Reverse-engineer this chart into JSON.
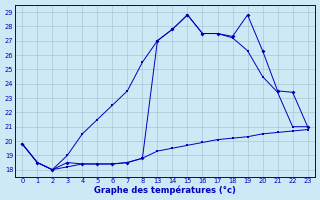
{
  "xlabel": "Graphe des températures (°c)",
  "bg_color": "#cce9f5",
  "grid_color": "#aabbcc",
  "line_color": "#0000bb",
  "xlim": [
    -0.5,
    19.5
  ],
  "ylim": [
    17.5,
    29.5
  ],
  "yticks_vals": [
    18,
    19,
    20,
    21,
    22,
    23,
    24,
    25,
    26,
    27,
    28,
    29
  ],
  "xtick_positions": [
    0,
    1,
    2,
    3,
    4,
    5,
    6,
    7,
    8,
    9,
    10,
    11,
    12,
    13,
    14,
    15,
    16,
    17,
    18,
    19
  ],
  "xtick_labels": [
    "0",
    "1",
    "2",
    "3",
    "4",
    "5",
    "6",
    "7",
    "8",
    "13",
    "14",
    "15",
    "16",
    "17",
    "18",
    "19",
    "20",
    "21",
    "22",
    "23"
  ],
  "series_min_y": [
    19.8,
    18.5,
    18.0,
    18.2,
    18.4,
    18.4,
    18.4,
    18.5,
    18.8,
    19.3,
    19.5,
    19.7,
    19.9,
    20.1,
    20.2,
    20.3,
    20.5,
    20.6,
    20.7,
    20.8
  ],
  "series_max_y": [
    19.8,
    18.5,
    18.0,
    19.0,
    20.5,
    21.5,
    22.5,
    23.5,
    25.5,
    27.0,
    27.8,
    28.8,
    27.5,
    27.5,
    27.2,
    26.3,
    24.5,
    23.4,
    21.0,
    21.0
  ],
  "series_cur_y": [
    19.8,
    18.5,
    18.0,
    18.5,
    18.4,
    18.4,
    18.4,
    18.5,
    18.8,
    27.0,
    27.8,
    28.8,
    27.5,
    27.5,
    27.3,
    28.8,
    26.3,
    23.5,
    23.4,
    21.0
  ]
}
